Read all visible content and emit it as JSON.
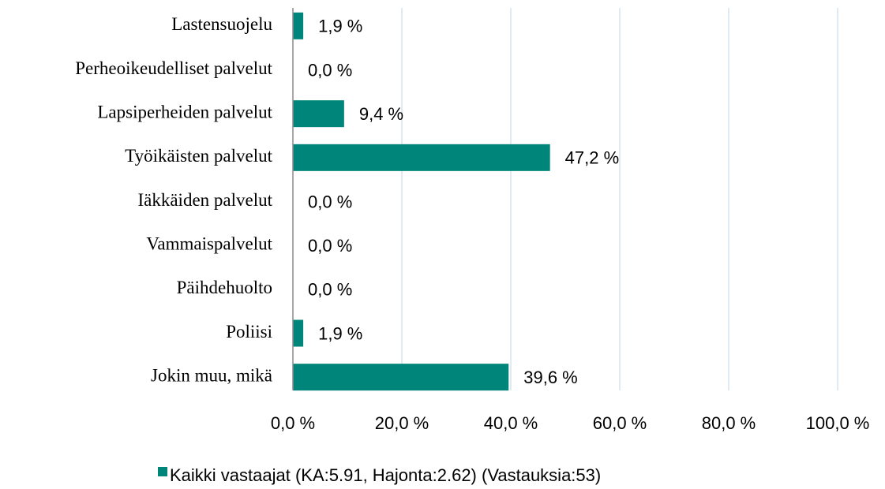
{
  "chart_data": {
    "type": "bar",
    "orientation": "horizontal",
    "categories": [
      "Lastensuojelu",
      "Perheoikeudelliset palvelut",
      "Lapsiperheiden palvelut",
      "Työikäisten palvelut",
      "Iäkkäiden palvelut",
      "Vammaispalvelut",
      "Päihdehuolto",
      "Poliisi",
      "Jokin muu, mikä"
    ],
    "series": [
      {
        "name": "Kaikki vastaajat (KA:5.91, Hajonta:2.62) (Vastauksia:53)",
        "color": "#00857a",
        "values": [
          1.9,
          0.0,
          9.4,
          47.2,
          0.0,
          0.0,
          0.0,
          1.9,
          39.6
        ],
        "value_labels": [
          "1,9 %",
          "0,0 %",
          "9,4 %",
          "47,2 %",
          "0,0 %",
          "0,0 %",
          "0,0 %",
          "1,9 %",
          "39,6 %"
        ]
      }
    ],
    "xlim": [
      0,
      100
    ],
    "xticks": [
      {
        "value": 0,
        "label": "0,0 %"
      },
      {
        "value": 20,
        "label": "20,0 %"
      },
      {
        "value": 40,
        "label": "40,0 %"
      },
      {
        "value": 60,
        "label": "60,0 %"
      },
      {
        "value": 80,
        "label": "80,0 %"
      },
      {
        "value": 100,
        "label": "100,0 %"
      }
    ],
    "grid": true,
    "legend": "bottom"
  }
}
